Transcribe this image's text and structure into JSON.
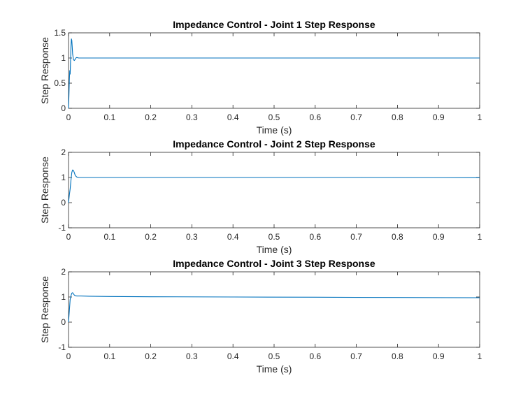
{
  "chart_data": [
    {
      "type": "line",
      "title": "Impedance Control - Joint 1 Step Response",
      "xlabel": "Time (s)",
      "ylabel": "Step Response",
      "xlim": [
        0,
        1
      ],
      "ylim": [
        0,
        1.5
      ],
      "xticks": [
        0,
        0.1,
        0.2,
        0.3,
        0.4,
        0.5,
        0.6,
        0.7,
        0.8,
        0.9,
        1
      ],
      "xtick_labels": [
        "0",
        "0.1",
        "0.2",
        "0.3",
        "0.4",
        "0.5",
        "0.6",
        "0.7",
        "0.8",
        "0.9",
        "1"
      ],
      "yticks": [
        0,
        0.5,
        1,
        1.5
      ],
      "ytick_labels": [
        "0",
        "0.5",
        "1",
        "1.5"
      ],
      "grid": false,
      "line_color": "#0072BD",
      "series": [
        {
          "x": [
            0,
            0.001,
            0.002,
            0.003,
            0.004,
            0.005,
            0.006,
            0.007,
            0.008,
            0.009,
            0.01,
            0.012,
            0.014,
            0.016,
            0.018,
            0.02,
            0.025,
            0.03,
            0.04,
            0.05,
            0.1,
            0.2,
            0.4,
            0.6,
            0.8,
            1.0
          ],
          "y": [
            0,
            0.25,
            0.55,
            0.75,
            0.68,
            0.95,
            1.25,
            1.38,
            1.35,
            1.22,
            1.08,
            0.97,
            0.95,
            0.97,
            1.0,
            1.01,
            1.0,
            1.0,
            1.0,
            1.0,
            1.0,
            1.0,
            1.0,
            1.0,
            1.0,
            1.0
          ]
        }
      ]
    },
    {
      "type": "line",
      "title": "Impedance Control - Joint 2 Step Response",
      "xlabel": "Time (s)",
      "ylabel": "Step Response",
      "xlim": [
        0,
        1
      ],
      "ylim": [
        -1,
        2
      ],
      "xticks": [
        0,
        0.1,
        0.2,
        0.3,
        0.4,
        0.5,
        0.6,
        0.7,
        0.8,
        0.9,
        1
      ],
      "xtick_labels": [
        "0",
        "0.1",
        "0.2",
        "0.3",
        "0.4",
        "0.5",
        "0.6",
        "0.7",
        "0.8",
        "0.9",
        "1"
      ],
      "yticks": [
        -1,
        0,
        1,
        2
      ],
      "ytick_labels": [
        "-1",
        "0",
        "1",
        "2"
      ],
      "grid": false,
      "line_color": "#0072BD",
      "series": [
        {
          "x": [
            0,
            0.002,
            0.004,
            0.006,
            0.008,
            0.01,
            0.012,
            0.014,
            0.016,
            0.018,
            0.02,
            0.025,
            0.03,
            0.04,
            0.05,
            0.1,
            0.3,
            0.5,
            0.7,
            1.0
          ],
          "y": [
            0,
            0.3,
            0.55,
            0.9,
            1.2,
            1.3,
            1.28,
            1.2,
            1.1,
            1.05,
            1.02,
            1.0,
            1.0,
            1.0,
            1.0,
            1.0,
            1.0,
            1.0,
            1.0,
            0.99
          ]
        }
      ]
    },
    {
      "type": "line",
      "title": "Impedance Control - Joint 3 Step Response",
      "xlabel": "Time (s)",
      "ylabel": "Step Response",
      "xlim": [
        0,
        1
      ],
      "ylim": [
        -1,
        2
      ],
      "xticks": [
        0,
        0.1,
        0.2,
        0.3,
        0.4,
        0.5,
        0.6,
        0.7,
        0.8,
        0.9,
        1
      ],
      "xtick_labels": [
        "0",
        "0.1",
        "0.2",
        "0.3",
        "0.4",
        "0.5",
        "0.6",
        "0.7",
        "0.8",
        "0.9",
        "1"
      ],
      "yticks": [
        -1,
        0,
        1,
        2
      ],
      "ytick_labels": [
        "-1",
        "0",
        "1",
        "2"
      ],
      "grid": false,
      "line_color": "#0072BD",
      "series": [
        {
          "x": [
            0,
            0.002,
            0.004,
            0.006,
            0.008,
            0.01,
            0.012,
            0.014,
            0.016,
            0.02,
            0.03,
            0.05,
            0.1,
            0.2,
            0.4,
            0.6,
            0.8,
            1.0
          ],
          "y": [
            0,
            0.45,
            0.9,
            1.05,
            1.15,
            1.17,
            1.12,
            1.08,
            1.05,
            1.04,
            1.04,
            1.03,
            1.02,
            1.01,
            1.0,
            0.99,
            0.98,
            0.97
          ]
        }
      ]
    }
  ]
}
